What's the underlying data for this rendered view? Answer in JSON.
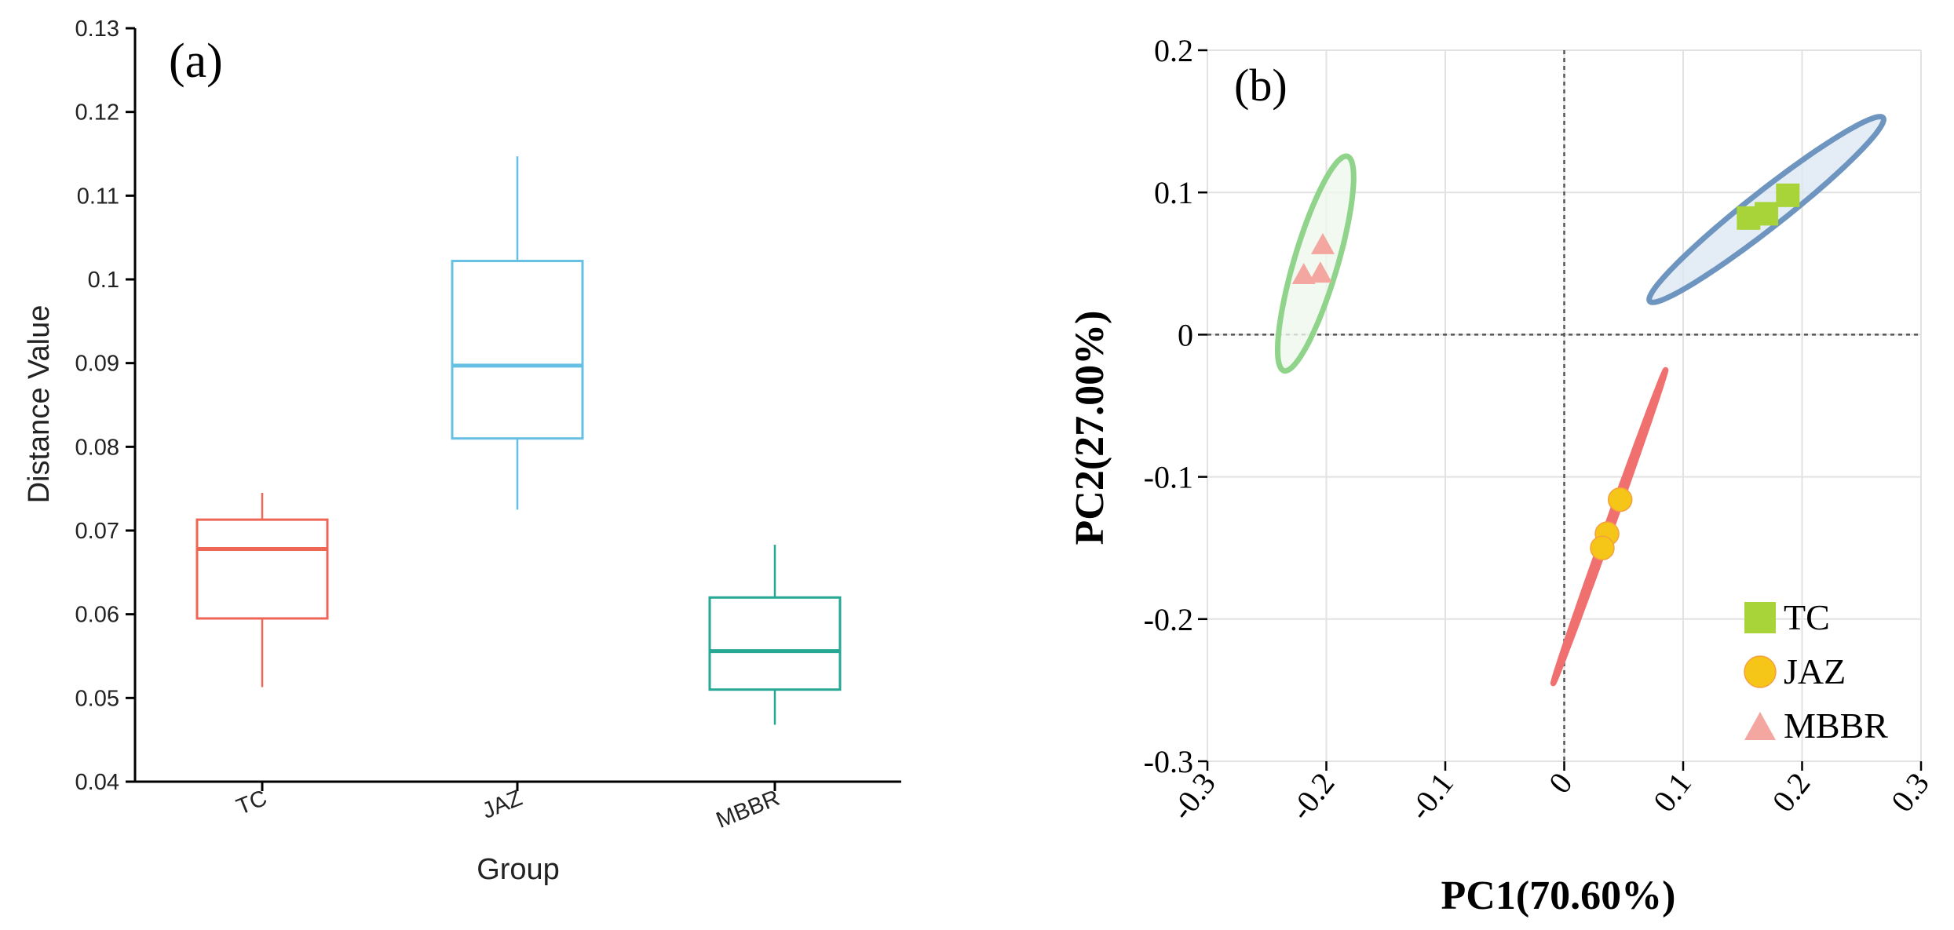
{
  "chart_data": [
    {
      "panel": "(a)",
      "type": "box",
      "xlabel": "Group",
      "ylabel": "Distance Value",
      "ylim": [
        0.04,
        0.13
      ],
      "yticks": [
        "0.04",
        "0.05",
        "0.06",
        "0.07",
        "0.08",
        "0.09",
        "0.1",
        "0.11",
        "0.12",
        "0.13"
      ],
      "categories": [
        "TC",
        "JAZ",
        "MBBR"
      ],
      "boxes": [
        {
          "name": "TC",
          "color": "#ee6655",
          "min": 0.0513,
          "q1": 0.0595,
          "median": 0.0678,
          "q3": 0.0713,
          "max": 0.0745
        },
        {
          "name": "JAZ",
          "color": "#66c0e4",
          "min": 0.0725,
          "q1": 0.081,
          "median": 0.0897,
          "q3": 0.1022,
          "max": 0.1147
        },
        {
          "name": "MBBR",
          "color": "#26a894",
          "min": 0.0468,
          "q1": 0.051,
          "median": 0.0556,
          "q3": 0.062,
          "max": 0.0683
        }
      ]
    },
    {
      "panel": "(b)",
      "type": "scatter",
      "xlabel": "PC1(70.60%)",
      "ylabel": "PC2(27.00%)",
      "xlim": [
        -0.3,
        0.3
      ],
      "ylim": [
        -0.3,
        0.2
      ],
      "xticks": [
        "-0.3",
        "-0.2",
        "-0.1",
        "0",
        "0.1",
        "0.2",
        "0.3"
      ],
      "yticks": [
        "-0.3",
        "-0.2",
        "-0.1",
        "0",
        "0.1",
        "0.2"
      ],
      "legend_position": "bottom-right",
      "series": [
        {
          "name": "TC",
          "marker": "square",
          "color": "#a8d43a",
          "points": [
            [
              0.155,
              0.082
            ],
            [
              0.17,
              0.085
            ],
            [
              0.188,
              0.098
            ]
          ],
          "ellipse": {
            "color": "#6e95bf",
            "fill": "#dde7f2",
            "center": [
              0.17,
              0.088
            ],
            "angle_deg": 33.2,
            "semi_major": 0.1175,
            "semi_minor": 0.0135
          }
        },
        {
          "name": "JAZ",
          "marker": "circle",
          "color": "#f5c518",
          "points": [
            [
              0.047,
              -0.116
            ],
            [
              0.036,
              -0.14
            ],
            [
              0.032,
              -0.15
            ]
          ],
          "ellipse": {
            "color": "#f07070",
            "fill": "none",
            "center": [
              0.038,
              -0.135
            ],
            "angle_deg": 66.8,
            "semi_major": 0.12,
            "semi_minor": 0.0022
          }
        },
        {
          "name": "MBBR",
          "marker": "triangle",
          "color": "#f4a7a0",
          "points": [
            [
              -0.203,
              0.064
            ],
            [
              -0.219,
              0.043
            ],
            [
              -0.205,
              0.044
            ]
          ],
          "ellipse": {
            "color": "#8fd48a",
            "fill": "#eef8ec",
            "center": [
              -0.209,
              0.05
            ],
            "angle_deg": 70.2,
            "semi_major": 0.08,
            "semi_minor": 0.018
          }
        }
      ]
    }
  ]
}
